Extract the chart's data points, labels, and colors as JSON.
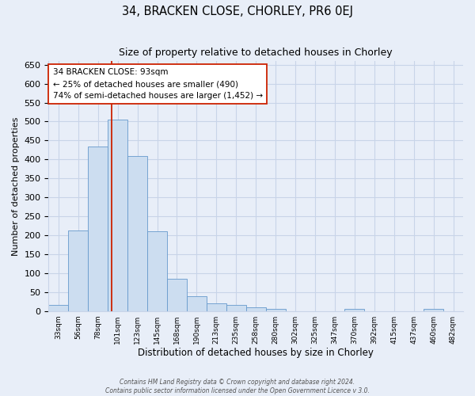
{
  "title": "34, BRACKEN CLOSE, CHORLEY, PR6 0EJ",
  "subtitle": "Size of property relative to detached houses in Chorley",
  "xlabel": "Distribution of detached houses by size in Chorley",
  "ylabel": "Number of detached properties",
  "footer_line1": "Contains HM Land Registry data © Crown copyright and database right 2024.",
  "footer_line2": "Contains public sector information licensed under the Open Government Licence v 3.0.",
  "bin_labels": [
    "33sqm",
    "56sqm",
    "78sqm",
    "101sqm",
    "123sqm",
    "145sqm",
    "168sqm",
    "190sqm",
    "213sqm",
    "235sqm",
    "258sqm",
    "280sqm",
    "302sqm",
    "325sqm",
    "347sqm",
    "370sqm",
    "392sqm",
    "415sqm",
    "437sqm",
    "460sqm",
    "482sqm"
  ],
  "bar_heights": [
    17,
    212,
    435,
    505,
    410,
    210,
    85,
    40,
    20,
    17,
    10,
    5,
    0,
    0,
    0,
    5,
    0,
    0,
    0,
    5,
    0
  ],
  "n_bins": 21,
  "bar_color": "#ccddf0",
  "bar_edge_color": "#6699cc",
  "background_color": "#e8eef8",
  "plot_bg_color": "#e8eef8",
  "grid_color": "#c8d4e8",
  "vline_x_bin": 2.7,
  "vline_color": "#cc2200",
  "annotation_line1": "34 BRACKEN CLOSE: 93sqm",
  "annotation_line2": "← 25% of detached houses are smaller (490)",
  "annotation_line3": "74% of semi-detached houses are larger (1,452) →",
  "annotation_box_color": "#ffffff",
  "annotation_box_edge_color": "#cc2200",
  "ylim": [
    0,
    660
  ],
  "yticks": [
    0,
    50,
    100,
    150,
    200,
    250,
    300,
    350,
    400,
    450,
    500,
    550,
    600,
    650
  ]
}
